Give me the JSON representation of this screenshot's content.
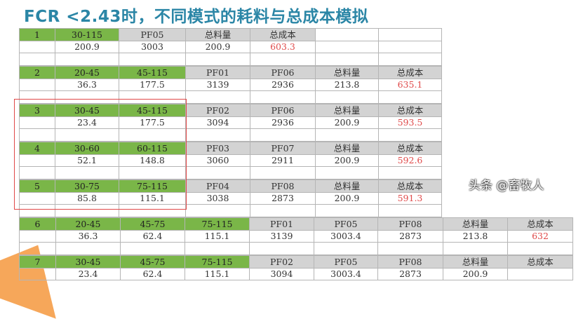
{
  "title": "FCR <2.43时，不同模式的耗料与总成本模拟",
  "colors": {
    "green": "#7ab648",
    "gray": "#d3d3d3",
    "cost_red": "#e04b4b",
    "title": "#2b86a6",
    "highlight_box": "#e04848"
  },
  "watermark": "头条 @畜牧人",
  "blocks": [
    {
      "header": [
        "1",
        "30-115",
        "PF05",
        "总料量",
        "总成本"
      ],
      "green": 2,
      "values": [
        "",
        "200.9",
        "3003",
        "200.9",
        "603.3"
      ]
    },
    {
      "header": [
        "2",
        "20-45",
        "45-115",
        "PF01",
        "PF06",
        "总料量",
        "总成本"
      ],
      "green": 3,
      "values": [
        "",
        "36.3",
        "177.5",
        "3139",
        "2936",
        "213.8",
        "635.1"
      ]
    },
    {
      "header": [
        "3",
        "30-45",
        "45-115",
        "PF02",
        "PF06",
        "总料量",
        "总成本"
      ],
      "green": 3,
      "values": [
        "",
        "23.4",
        "177.5",
        "3094",
        "2936",
        "200.9",
        "593.5"
      ]
    },
    {
      "header": [
        "4",
        "30-60",
        "60-115",
        "PF03",
        "PF07",
        "总料量",
        "总成本"
      ],
      "green": 3,
      "values": [
        "",
        "52.1",
        "148.8",
        "3060",
        "2911",
        "200.9",
        "592.6"
      ]
    },
    {
      "header": [
        "5",
        "30-75",
        "75-115",
        "PF04",
        "PF08",
        "总料量",
        "总成本"
      ],
      "green": 3,
      "values": [
        "",
        "85.8",
        "115.1",
        "3038",
        "2873",
        "200.9",
        "591.3"
      ]
    },
    {
      "header": [
        "6",
        "20-45",
        "45-75",
        "75-115",
        "PF01",
        "PF05",
        "PF08",
        "总料量",
        "总成本"
      ],
      "green": 4,
      "values": [
        "",
        "36.3",
        "62.4",
        "115.1",
        "3139",
        "3003.4",
        "2873",
        "213.8",
        "632"
      ]
    },
    {
      "header": [
        "7",
        "30-45",
        "45-75",
        "75-115",
        "PF02",
        "PF05",
        "PF08",
        "总料量",
        "总成本"
      ],
      "green": 4,
      "values": [
        "",
        "23.4",
        "62.4",
        "115.1",
        "3094",
        "3003.4",
        "2873",
        "200.9",
        ""
      ]
    }
  ]
}
